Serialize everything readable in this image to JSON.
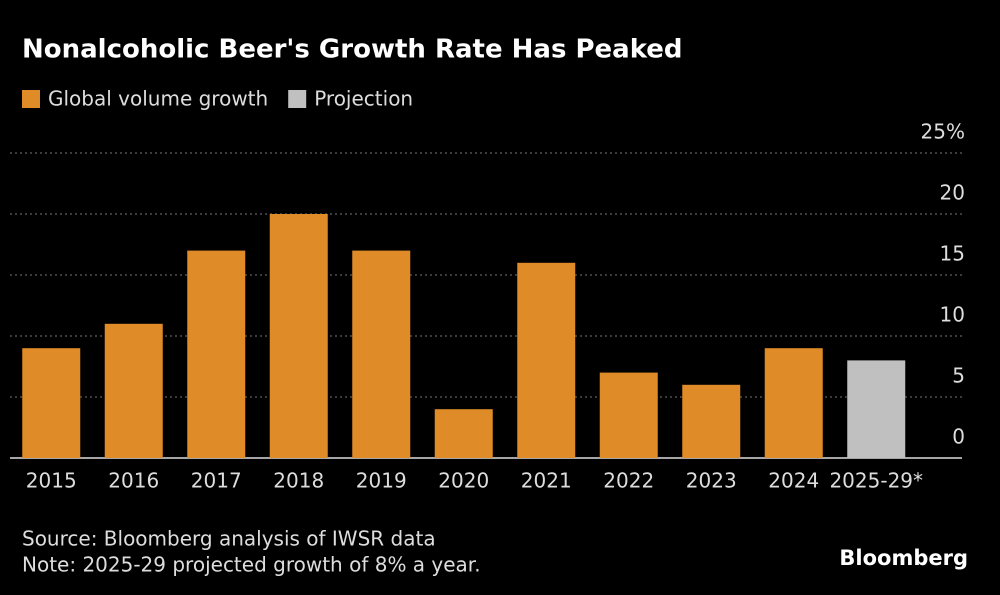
{
  "chart_data": {
    "type": "bar",
    "title": "Nonalcoholic Beer's Growth Rate Has Peaked",
    "categories": [
      "2015",
      "2016",
      "2017",
      "2018",
      "2019",
      "2020",
      "2021",
      "2022",
      "2023",
      "2024",
      "2025-29*"
    ],
    "series": [
      {
        "name": "Global volume growth",
        "color": "#df8b27",
        "values": [
          9,
          11,
          17,
          20,
          17,
          4,
          16,
          7,
          6,
          9,
          null
        ]
      },
      {
        "name": "Projection",
        "color": "#c0c0c0",
        "values": [
          null,
          null,
          null,
          null,
          null,
          null,
          null,
          null,
          null,
          null,
          8
        ]
      }
    ],
    "ylim": [
      0,
      25
    ],
    "yticks": [
      0,
      5,
      10,
      15,
      20,
      {
        "value": 25,
        "label": "25%"
      }
    ],
    "grid": true,
    "source": "Source: Bloomberg analysis of IWSR data",
    "note": "Note: 2025-29 projected growth of 8% a year.",
    "brand": "Bloomberg"
  }
}
